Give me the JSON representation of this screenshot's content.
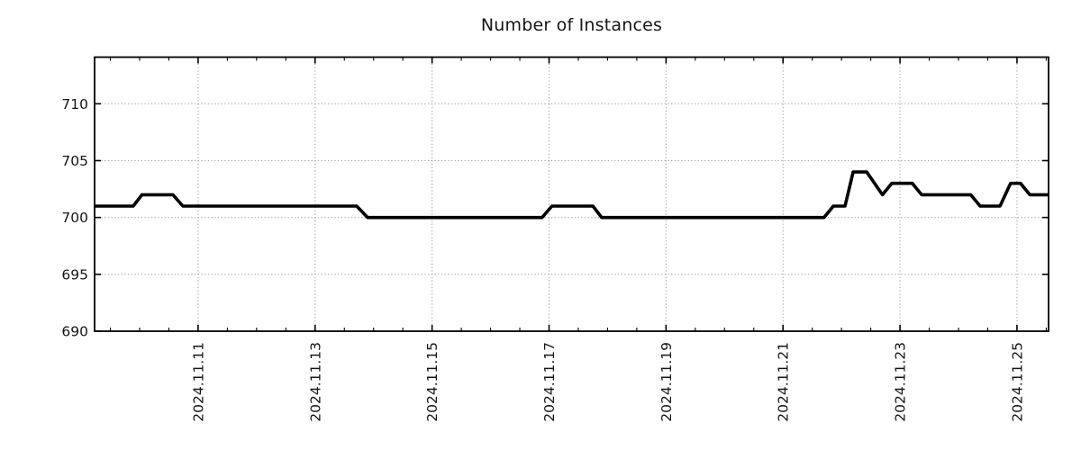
{
  "chart_data": {
    "type": "line",
    "title": "Number of Instances",
    "xlabel": "",
    "ylabel": "",
    "grid": true,
    "legend": false,
    "x_axis_note": "decimal day of November 2024, labels rotated 90deg",
    "xlim": [
      9.23,
      25.54
    ],
    "ylim": [
      690,
      714.1
    ],
    "y_ticks": [
      690,
      695,
      700,
      705,
      710
    ],
    "x_minor_step": 0.5,
    "x_ticks": [
      {
        "pos": 11,
        "label": "2024.11.11"
      },
      {
        "pos": 13,
        "label": "2024.11.13"
      },
      {
        "pos": 15,
        "label": "2024.11.15"
      },
      {
        "pos": 17,
        "label": "2024.11.17"
      },
      {
        "pos": 19,
        "label": "2024.11.19"
      },
      {
        "pos": 21,
        "label": "2024.11.21"
      },
      {
        "pos": 23,
        "label": "2024.11.23"
      },
      {
        "pos": 25,
        "label": "2024.11.25"
      }
    ],
    "series": [
      {
        "name": "instances",
        "color": "#000000",
        "width": 3.6,
        "points": [
          [
            9.23,
            701
          ],
          [
            9.89,
            701
          ],
          [
            10.04,
            702
          ],
          [
            10.57,
            702
          ],
          [
            10.74,
            701
          ],
          [
            13.71,
            701
          ],
          [
            13.9,
            700
          ],
          [
            16.88,
            700
          ],
          [
            17.05,
            701
          ],
          [
            17.75,
            701
          ],
          [
            17.9,
            700
          ],
          [
            21.7,
            700
          ],
          [
            21.86,
            701
          ],
          [
            22.06,
            701
          ],
          [
            22.2,
            704
          ],
          [
            22.43,
            704
          ],
          [
            22.7,
            702
          ],
          [
            22.86,
            703
          ],
          [
            23.21,
            703
          ],
          [
            23.37,
            702
          ],
          [
            24.21,
            702
          ],
          [
            24.37,
            701
          ],
          [
            24.71,
            701
          ],
          [
            24.89,
            703
          ],
          [
            25.06,
            703
          ],
          [
            25.22,
            702
          ],
          [
            25.54,
            702
          ]
        ]
      }
    ]
  },
  "style": {
    "background": "#ffffff",
    "grid_color": "#a8a8a8",
    "axis_color": "#000000",
    "text_color": "#151515",
    "line_color": "#000000"
  }
}
